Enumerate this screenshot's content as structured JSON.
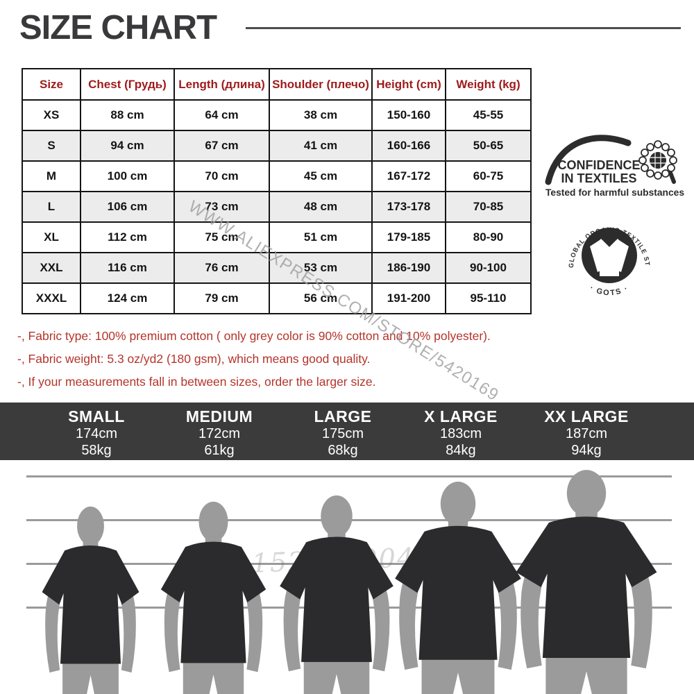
{
  "title": "SIZE CHART",
  "watermark_diagonal": "WWW.ALIEXPRESS.COM/STORE/5420169",
  "watermark_faint": "n1529190043upst",
  "size_table": {
    "headers": [
      "Size",
      "Chest  (Грудь)",
      "Length (длина)",
      "Shoulder (плечо)",
      "Height (cm)",
      "Weight (kg)"
    ],
    "rows": [
      [
        "XS",
        "88 cm",
        "64 cm",
        "38 cm",
        "150-160",
        "45-55"
      ],
      [
        "S",
        "94 cm",
        "67 cm",
        "41 cm",
        "160-166",
        "50-65"
      ],
      [
        "M",
        "100 cm",
        "70 cm",
        "45 cm",
        "167-172",
        "60-75"
      ],
      [
        "L",
        "106 cm",
        "73 cm",
        "48 cm",
        "173-178",
        "70-85"
      ],
      [
        "XL",
        "112 cm",
        "75 cm",
        "51 cm",
        "179-185",
        "80-90"
      ],
      [
        "XXL",
        "116 cm",
        "76 cm",
        "53 cm",
        "186-190",
        "90-100"
      ],
      [
        "XXXL",
        "124 cm",
        "79 cm",
        "56 cm",
        "191-200",
        "95-110"
      ]
    ]
  },
  "notes": [
    "-, Fabric type: 100% premium cotton ( only grey color is 90% cotton and 10% polyester).",
    "-, Fabric weight: 5.3 oz/yd2 (180 gsm), which means good quality.",
    "-, If your measurements fall in between sizes, order the larger size."
  ],
  "certifications": {
    "oeko_tex": {
      "line1": "CONFIDENCE",
      "line2": "IN TEXTILES",
      "caption": "Tested for harmful substances"
    },
    "gots": {
      "ring_text": "GLOBAL ORGANIC  TEXTILE STANDARD",
      "bottom_text": "· GOTS ·"
    }
  },
  "model_sizes": [
    {
      "label": "SMALL",
      "height": "174cm",
      "weight": "58kg"
    },
    {
      "label": "MEDIUM",
      "height": "172cm",
      "weight": "61kg"
    },
    {
      "label": "LARGE",
      "height": "175cm",
      "weight": "68kg"
    },
    {
      "label": "X LARGE",
      "height": "183cm",
      "weight": "84kg"
    },
    {
      "label": "XX LARGE",
      "height": "187cm",
      "weight": "94kg"
    }
  ],
  "colors": {
    "header_red": "#9e1b1b",
    "note_red": "#b5342b",
    "band_bg": "#3b3b3b",
    "shirt_dark": "#2b2b2d",
    "skin_gray": "#9b9b9b",
    "line_gray": "#9a9a9a"
  }
}
